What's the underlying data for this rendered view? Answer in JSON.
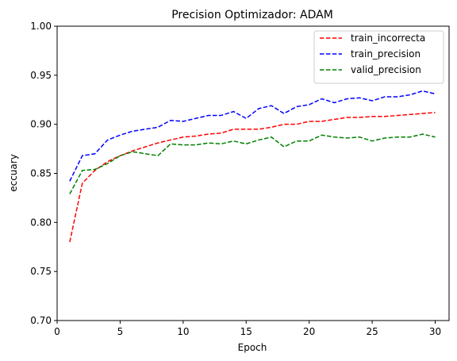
{
  "chart_data": {
    "type": "line",
    "title": "Precision  Optimizador: ADAM",
    "xlabel": "Epoch",
    "ylabel": "eccuary",
    "xlim": [
      0.0,
      31.1
    ],
    "ylim": [
      0.7,
      1.0
    ],
    "xticks": [
      0,
      5,
      10,
      15,
      20,
      25,
      30
    ],
    "yticks": [
      0.7,
      0.75,
      0.8,
      0.85,
      0.9,
      0.95,
      1.0
    ],
    "xtick_labels": [
      "0",
      "5",
      "10",
      "15",
      "20",
      "25",
      "30"
    ],
    "ytick_labels": [
      "0.70",
      "0.75",
      "0.80",
      "0.85",
      "0.90",
      "0.95",
      "1.00"
    ],
    "grid": false,
    "legend_position": "top-right",
    "x": [
      1,
      2,
      3,
      4,
      5,
      6,
      7,
      8,
      9,
      10,
      11,
      12,
      13,
      14,
      15,
      16,
      17,
      18,
      19,
      20,
      21,
      22,
      23,
      24,
      25,
      26,
      27,
      28,
      29,
      30
    ],
    "series": [
      {
        "name": "train_incorrecta",
        "color": "#ff0000",
        "values": [
          0.78,
          0.84,
          0.853,
          0.862,
          0.868,
          0.873,
          0.877,
          0.881,
          0.884,
          0.887,
          0.888,
          0.89,
          0.891,
          0.895,
          0.895,
          0.895,
          0.897,
          0.9,
          0.9,
          0.903,
          0.903,
          0.905,
          0.907,
          0.907,
          0.908,
          0.908,
          0.909,
          0.91,
          0.911,
          0.912
        ]
      },
      {
        "name": "train_precision",
        "color": "#0000ff",
        "values": [
          0.842,
          0.868,
          0.87,
          0.884,
          0.889,
          0.893,
          0.895,
          0.897,
          0.904,
          0.903,
          0.906,
          0.909,
          0.909,
          0.913,
          0.906,
          0.916,
          0.919,
          0.911,
          0.918,
          0.92,
          0.926,
          0.922,
          0.926,
          0.927,
          0.924,
          0.928,
          0.928,
          0.93,
          0.934,
          0.931
        ]
      },
      {
        "name": "valid_precision",
        "color": "#008000",
        "values": [
          0.829,
          0.853,
          0.854,
          0.86,
          0.868,
          0.872,
          0.87,
          0.868,
          0.88,
          0.879,
          0.879,
          0.881,
          0.88,
          0.883,
          0.88,
          0.884,
          0.887,
          0.877,
          0.883,
          0.883,
          0.889,
          0.887,
          0.886,
          0.887,
          0.883,
          0.886,
          0.887,
          0.887,
          0.89,
          0.887
        ]
      }
    ]
  }
}
